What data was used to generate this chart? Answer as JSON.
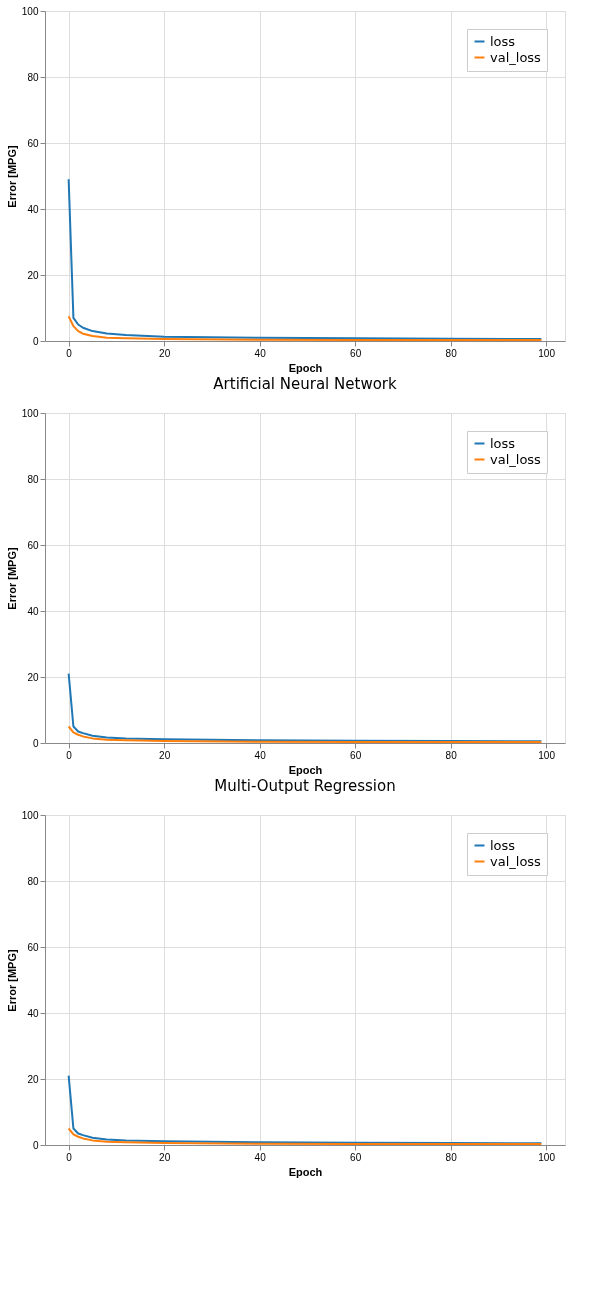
{
  "chart_data": [
    {
      "type": "line",
      "xlabel": "Epoch",
      "ylabel": "Error [MPG]",
      "annotations": [
        "Artificial Neural Network"
      ],
      "xlim": [
        -4.95,
        103.95
      ],
      "ylim": [
        0,
        100
      ],
      "xticks": [
        0,
        20,
        40,
        60,
        80,
        100
      ],
      "yticks": [
        0,
        20,
        40,
        60,
        80,
        100
      ],
      "grid": true,
      "legend": "top right",
      "line_style": "solid",
      "series": [
        {
          "name": "loss",
          "color": "#1f77b4",
          "x": [
            0,
            1,
            2,
            3,
            5,
            8,
            12,
            20,
            40,
            60,
            80,
            99
          ],
          "values": [
            49,
            7,
            5,
            4,
            3,
            2.3,
            1.8,
            1.3,
            1.0,
            0.8,
            0.7,
            0.6
          ]
        },
        {
          "name": "val_loss",
          "color": "#ff7f0e",
          "x": [
            0,
            1,
            2,
            3,
            5,
            8,
            12,
            20,
            40,
            60,
            80,
            99
          ],
          "values": [
            7.5,
            4.5,
            3,
            2.2,
            1.5,
            1.0,
            0.8,
            0.6,
            0.4,
            0.3,
            0.3,
            0.3
          ]
        }
      ]
    },
    {
      "type": "line",
      "xlabel": "Epoch",
      "ylabel": "Error [MPG]",
      "annotations": [
        "Multi-Output Regression"
      ],
      "xlim": [
        -4.95,
        103.95
      ],
      "ylim": [
        0,
        100
      ],
      "xticks": [
        0,
        20,
        40,
        60,
        80,
        100
      ],
      "yticks": [
        0,
        20,
        40,
        60,
        80,
        100
      ],
      "grid": true,
      "legend": "top right",
      "line_style": "solid",
      "series": [
        {
          "name": "loss",
          "color": "#1f77b4",
          "x": [
            0,
            1,
            2,
            3,
            5,
            8,
            12,
            20,
            40,
            60,
            80,
            99
          ],
          "values": [
            21,
            5,
            3.5,
            3,
            2.2,
            1.7,
            1.4,
            1.1,
            0.8,
            0.7,
            0.6,
            0.5
          ]
        },
        {
          "name": "val_loss",
          "color": "#ff7f0e",
          "x": [
            0,
            1,
            2,
            3,
            5,
            8,
            12,
            20,
            40,
            60,
            80,
            99
          ],
          "values": [
            5,
            3.2,
            2.5,
            2,
            1.4,
            1.0,
            0.8,
            0.6,
            0.4,
            0.3,
            0.3,
            0.3
          ]
        }
      ]
    },
    {
      "type": "line",
      "xlabel": "Epoch",
      "ylabel": "Error [MPG]",
      "xlim": [
        -4.95,
        103.95
      ],
      "ylim": [
        0,
        100
      ],
      "xticks": [
        0,
        20,
        40,
        60,
        80,
        100
      ],
      "yticks": [
        0,
        20,
        40,
        60,
        80,
        100
      ],
      "grid": true,
      "legend": "top right",
      "line_style": "solid",
      "series": [
        {
          "name": "loss",
          "color": "#1f77b4",
          "x": [
            0,
            1,
            2,
            3,
            5,
            8,
            12,
            20,
            40,
            60,
            80,
            99
          ],
          "values": [
            21,
            5,
            3.5,
            3,
            2.2,
            1.7,
            1.4,
            1.1,
            0.8,
            0.7,
            0.6,
            0.5
          ]
        },
        {
          "name": "val_loss",
          "color": "#ff7f0e",
          "x": [
            0,
            1,
            2,
            3,
            5,
            8,
            12,
            20,
            40,
            60,
            80,
            99
          ],
          "values": [
            5,
            3.2,
            2.5,
            2,
            1.4,
            1.0,
            0.8,
            0.6,
            0.4,
            0.3,
            0.3,
            0.3
          ]
        }
      ]
    }
  ]
}
